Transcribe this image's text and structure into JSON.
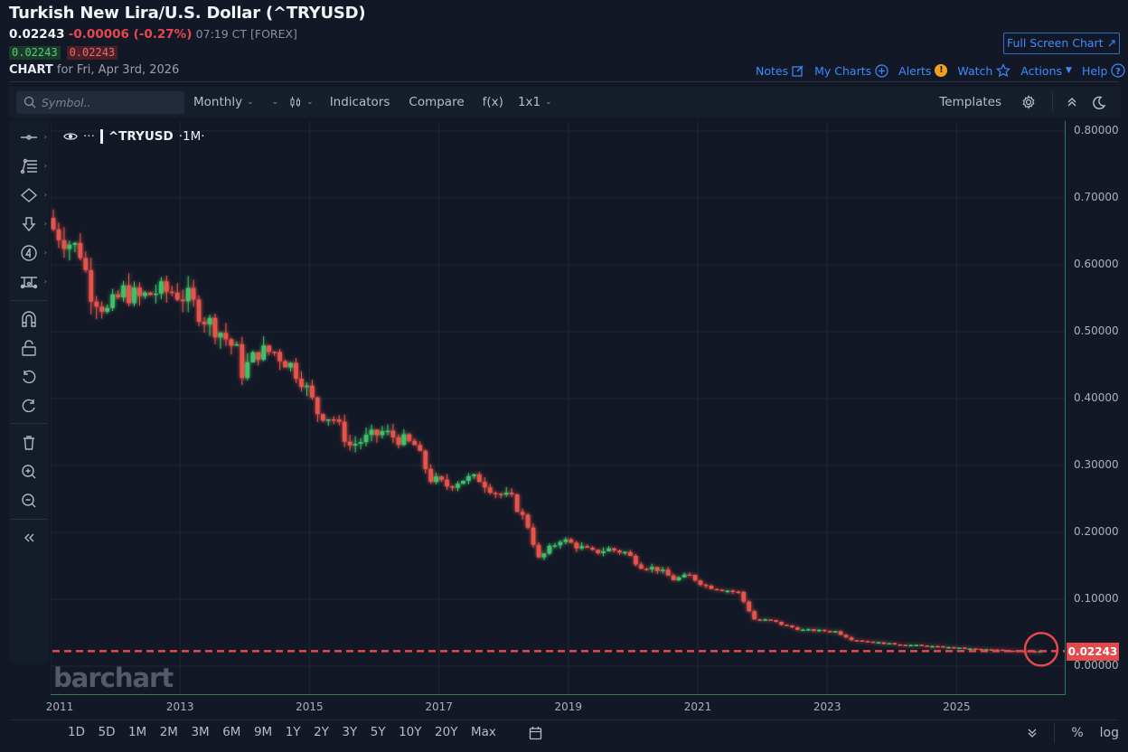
{
  "header": {
    "title": "Turkish New Lira/U.S. Dollar (^TRYUSD)",
    "last": "0.02243",
    "change": "-0.00006 (-0.27%)",
    "time": "07:19 CT [FOREX]",
    "bid": "0.02243",
    "ask": "0.02243",
    "chart_label": "CHART",
    "chart_for": "for Fri, Apr 3rd, 2026",
    "full_screen": "Full Screen Chart",
    "links": [
      {
        "label": "Notes",
        "icon": "edit-icon"
      },
      {
        "label": "My Charts",
        "icon": "plus-circle-icon"
      },
      {
        "label": "Alerts",
        "icon": "alert-icon"
      },
      {
        "label": "Watch",
        "icon": "star-icon"
      },
      {
        "label": "Actions",
        "icon": "caret-down-icon"
      },
      {
        "label": "Help",
        "icon": "help-icon"
      }
    ]
  },
  "toolbar": {
    "search_placeholder": "Symbol..",
    "interval": "Monthly",
    "chart_type_icon": "candles-icon",
    "indicators": "Indicators",
    "compare": "Compare",
    "fx": "f(x)",
    "layout": "1x1",
    "templates": "Templates"
  },
  "legend": {
    "symbol": "^TRYUSD",
    "period": "·1M·"
  },
  "watermark": "barchart",
  "price_tag": "0.02243",
  "ranges": [
    "1D",
    "5D",
    "1M",
    "2M",
    "3M",
    "6M",
    "9M",
    "1Y",
    "2Y",
    "3Y",
    "5Y",
    "10Y",
    "20Y",
    "Max"
  ],
  "bottom_right": {
    "percent": "%",
    "log": "log"
  },
  "colors": {
    "up": "#3fbf6a",
    "down": "#e5534b",
    "link": "#3d8bff",
    "background": "#121826"
  },
  "chart_data": {
    "type": "candlestick",
    "title": "Turkish New Lira/U.S. Dollar (^TRYUSD)",
    "interval": "Monthly",
    "xlabel": "",
    "ylabel": "",
    "ylim": [
      0.0,
      0.8
    ],
    "y_ticks": [
      "0.80000",
      "0.70000",
      "0.60000",
      "0.50000",
      "0.40000",
      "0.30000",
      "0.20000",
      "0.10000",
      "0.00000"
    ],
    "x_ticks": [
      "2011",
      "2013",
      "2015",
      "2017",
      "2019",
      "2021",
      "2023",
      "2025"
    ],
    "last_price": 0.02243,
    "last_price_line": "dashed",
    "grid": true,
    "series": [
      {
        "name": "^TRYUSD",
        "points": [
          [
            "2011-01",
            0.66
          ],
          [
            "2011-04",
            0.64
          ],
          [
            "2011-07",
            0.62
          ],
          [
            "2011-09",
            0.56
          ],
          [
            "2011-12",
            0.53
          ],
          [
            "2012-03",
            0.56
          ],
          [
            "2012-06",
            0.55
          ],
          [
            "2012-09",
            0.56
          ],
          [
            "2012-12",
            0.56
          ],
          [
            "2013-03",
            0.55
          ],
          [
            "2013-06",
            0.52
          ],
          [
            "2013-09",
            0.5
          ],
          [
            "2013-12",
            0.47
          ],
          [
            "2014-01",
            0.44
          ],
          [
            "2014-04",
            0.47
          ],
          [
            "2014-07",
            0.47
          ],
          [
            "2014-10",
            0.45
          ],
          [
            "2014-12",
            0.43
          ],
          [
            "2015-03",
            0.38
          ],
          [
            "2015-06",
            0.37
          ],
          [
            "2015-09",
            0.33
          ],
          [
            "2015-12",
            0.34
          ],
          [
            "2016-03",
            0.35
          ],
          [
            "2016-06",
            0.34
          ],
          [
            "2016-09",
            0.33
          ],
          [
            "2016-12",
            0.28
          ],
          [
            "2017-03",
            0.27
          ],
          [
            "2017-06",
            0.28
          ],
          [
            "2017-09",
            0.28
          ],
          [
            "2017-12",
            0.26
          ],
          [
            "2018-03",
            0.25
          ],
          [
            "2018-06",
            0.21
          ],
          [
            "2018-08",
            0.16
          ],
          [
            "2018-12",
            0.19
          ],
          [
            "2019-03",
            0.18
          ],
          [
            "2019-06",
            0.17
          ],
          [
            "2019-09",
            0.175
          ],
          [
            "2019-12",
            0.17
          ],
          [
            "2020-03",
            0.15
          ],
          [
            "2020-06",
            0.145
          ],
          [
            "2020-09",
            0.13
          ],
          [
            "2020-12",
            0.135
          ],
          [
            "2021-03",
            0.12
          ],
          [
            "2021-06",
            0.115
          ],
          [
            "2021-09",
            0.11
          ],
          [
            "2021-12",
            0.07
          ],
          [
            "2022-03",
            0.068
          ],
          [
            "2022-06",
            0.06
          ],
          [
            "2022-09",
            0.054
          ],
          [
            "2022-12",
            0.053
          ],
          [
            "2023-03",
            0.052
          ],
          [
            "2023-06",
            0.04
          ],
          [
            "2023-09",
            0.037
          ],
          [
            "2023-12",
            0.034
          ],
          [
            "2024-06",
            0.031
          ],
          [
            "2024-12",
            0.028
          ],
          [
            "2025-06",
            0.025
          ],
          [
            "2026-04",
            0.02243
          ]
        ]
      }
    ]
  }
}
